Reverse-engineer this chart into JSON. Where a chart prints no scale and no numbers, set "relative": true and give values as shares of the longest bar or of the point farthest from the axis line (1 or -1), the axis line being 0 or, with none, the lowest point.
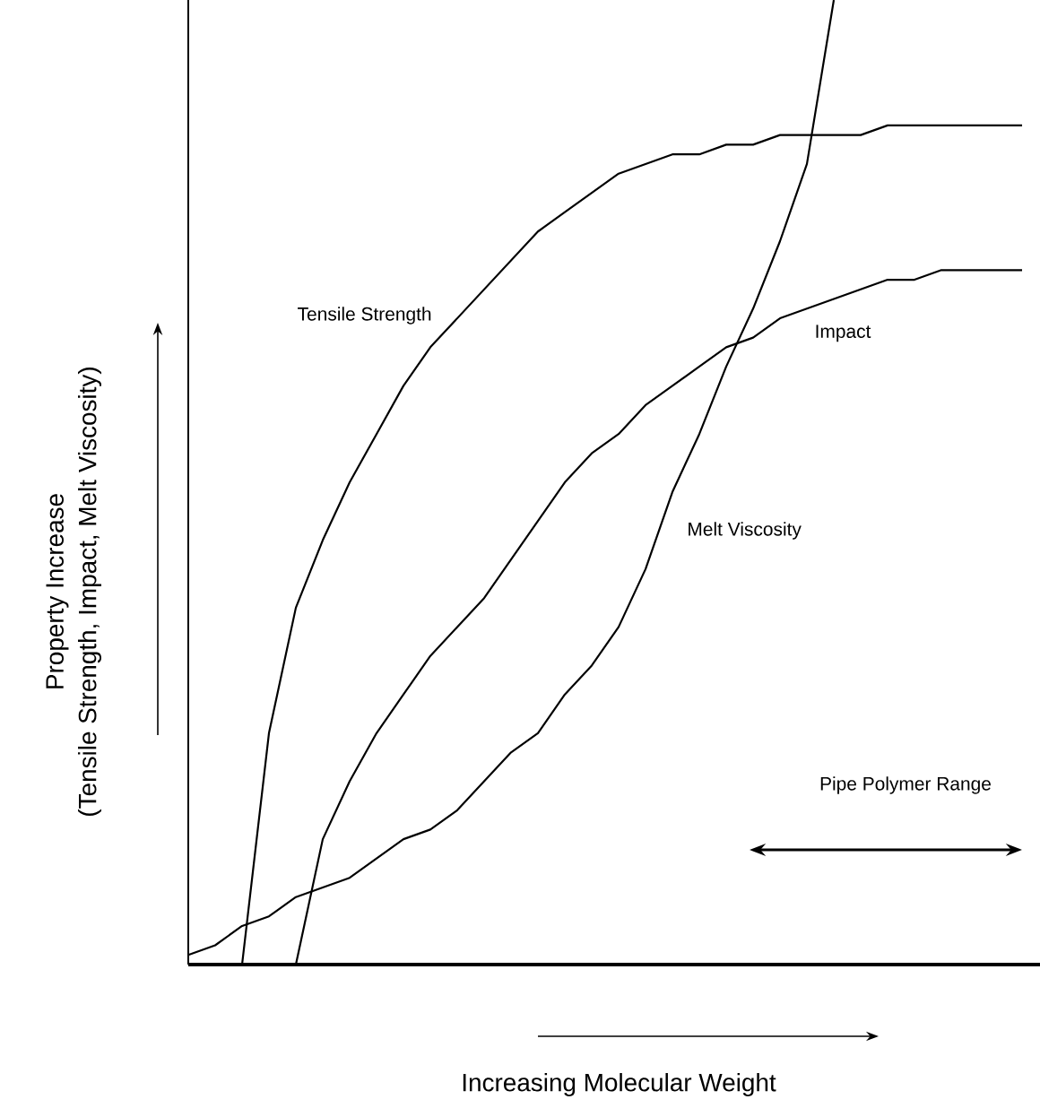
{
  "chart_data": {
    "type": "line",
    "relative": true,
    "xlabel": "Increasing Molecular Weight",
    "ylabel": "Property Increase",
    "annotations": [
      "(Tensile Strength, Impact, Melt Viscosity)",
      "Pipe Polymer Range"
    ],
    "marker": "none",
    "line_style": "solid",
    "categories": [
      null,
      null,
      null,
      null,
      null,
      null,
      null,
      null,
      null,
      null,
      null,
      null,
      null,
      null,
      null,
      null,
      null,
      null,
      null,
      null,
      null,
      null,
      null,
      null,
      null,
      null,
      null,
      null,
      null,
      null,
      null,
      null
    ],
    "series": [
      {
        "name": "Tensile Strength",
        "color": "#000000",
        "values": [
          null,
          null,
          0,
          0.24,
          0.37,
          0.44,
          0.5,
          0.55,
          0.6,
          0.64,
          0.67,
          0.7,
          0.73,
          0.76,
          0.78,
          0.8,
          0.82,
          0.83,
          0.84,
          0.84,
          0.85,
          0.85,
          0.86,
          0.86,
          0.86,
          0.86,
          0.87,
          0.87,
          0.87,
          0.87,
          0.87,
          0.87
        ]
      },
      {
        "name": "Impact",
        "color": "#000000",
        "values": [
          null,
          null,
          null,
          null,
          0,
          0.13,
          0.19,
          0.24,
          0.28,
          0.32,
          0.35,
          0.38,
          0.42,
          0.46,
          0.5,
          0.53,
          0.55,
          0.58,
          0.6,
          0.62,
          0.64,
          0.65,
          0.67,
          0.68,
          0.69,
          0.7,
          0.71,
          0.71,
          0.72,
          0.72,
          0.72,
          0.72
        ]
      },
      {
        "name": "Melt Viscosity",
        "color": "#000000",
        "values": [
          0.01,
          0.02,
          0.04,
          0.05,
          0.07,
          0.08,
          0.09,
          0.11,
          0.13,
          0.14,
          0.16,
          0.19,
          0.22,
          0.24,
          0.28,
          0.31,
          0.35,
          0.41,
          0.49,
          0.55,
          0.62,
          0.68,
          0.75,
          0.83,
          1.0,
          null,
          null,
          null,
          null,
          null,
          null,
          null
        ]
      }
    ]
  }
}
